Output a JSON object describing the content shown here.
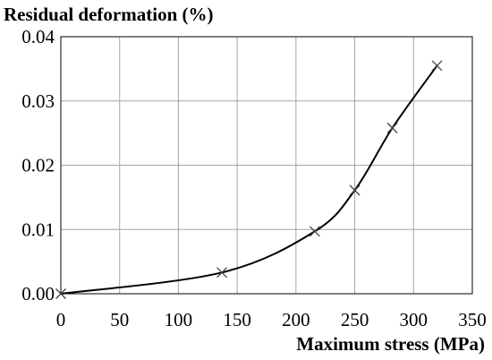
{
  "chart_data": {
    "type": "line",
    "title": "",
    "xlabel": "Maximum stress (MPa)",
    "ylabel": "Residual deformation (%)",
    "xlim": [
      0,
      350
    ],
    "ylim": [
      0,
      0.04
    ],
    "x_ticks": [
      "0",
      "50",
      "100",
      "150",
      "200",
      "250",
      "300",
      "350"
    ],
    "y_ticks": [
      "0.00",
      "0.01",
      "0.02",
      "0.03",
      "0.04"
    ],
    "grid": true,
    "legend": "none",
    "series": [
      {
        "marker": "x",
        "color": "#000000",
        "x": [
          0,
          137,
          216,
          250,
          282,
          320
        ],
        "y": [
          0.0,
          0.0033,
          0.0097,
          0.0161,
          0.0258,
          0.0355
        ]
      }
    ]
  }
}
